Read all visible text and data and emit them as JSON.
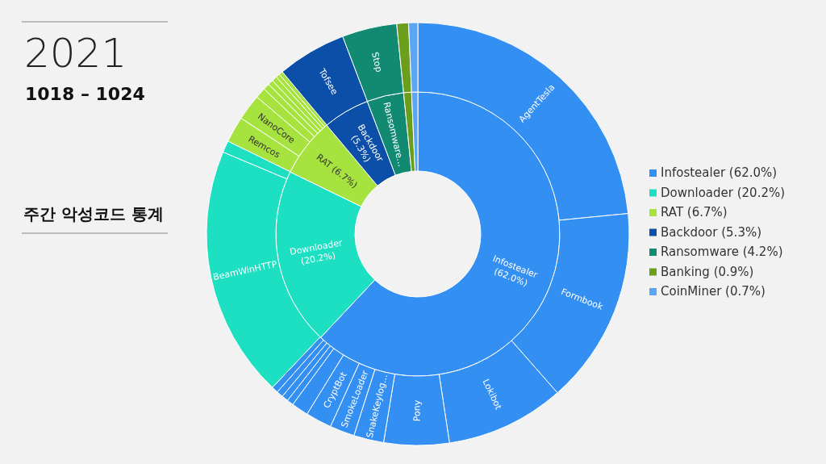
{
  "chart_data": [
    {
      "type": "donut",
      "title": "2021",
      "subtitle": "1018 – 1024",
      "annotations": [
        "주간 악성코드 통계"
      ],
      "legend": "right",
      "categories": [
        "Infostealer (62.0%)",
        "Downloader (20.2%)",
        "RAT (6.7%)",
        "Backdoor (5.3%)",
        "Ransomware (4.2%)",
        "Banking (0.9%)",
        "CoinMiner (0.7%)"
      ],
      "values": [
        62.0,
        20.2,
        6.7,
        5.3,
        4.2,
        0.9,
        0.7
      ],
      "colors": [
        "#348ff2",
        "#1de0c3",
        "#a6e33e",
        "#0b4fa8",
        "#128a72",
        "#6a9e1b",
        "#5ba5f5"
      ],
      "value_labels": [
        "Infostealer (62.0%)",
        "Downloader (20.2%)",
        "RAT (6.7%)",
        "Backdoor (5.3%)",
        "Ransomware…",
        null,
        null
      ]
    },
    {
      "type": "donut",
      "categories": [
        "AgentTesla",
        "Formbook",
        "Lokibot",
        "Pony",
        "SnakeKeylog…",
        "SmokeLoader",
        "CryptBot",
        null,
        null,
        null,
        null,
        null,
        "BeamWinHTTP",
        null,
        "Remcos",
        "NanoCore",
        null,
        null,
        null,
        null,
        null,
        null,
        "Tofsee",
        "Stop",
        null,
        null
      ],
      "values": [
        23.5,
        15.1,
        9.1,
        5.0,
        2.3,
        1.9,
        2.0,
        1.3,
        0.5,
        0.5,
        0.5,
        0.5,
        19.3,
        0.9,
        2.0,
        2.0,
        0.8,
        0.5,
        0.4,
        0.4,
        0.3,
        0.3,
        5.3,
        4.2,
        0.9,
        0.7
      ],
      "colors": [
        "#348ff2",
        "#348ff2",
        "#348ff2",
        "#348ff2",
        "#348ff2",
        "#348ff2",
        "#348ff2",
        "#348ff2",
        "#348ff2",
        "#348ff2",
        "#348ff2",
        "#348ff2",
        "#1de0c3",
        "#1de0c3",
        "#a6e33e",
        "#a6e33e",
        "#a6e33e",
        "#a6e33e",
        "#a6e33e",
        "#a6e33e",
        "#a6e33e",
        "#a6e33e",
        "#0b4fa8",
        "#128a72",
        "#6a9e1b",
        "#5ba5f5"
      ]
    }
  ]
}
